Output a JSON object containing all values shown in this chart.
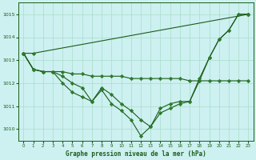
{
  "title": "Graphe pression niveau de la mer (hPa)",
  "background_color": "#cdf0f0",
  "grid_color": "#aaddcc",
  "line_color": "#1a5c1a",
  "marker_color": "#2d7a2d",
  "xlim": [
    -0.5,
    23.5
  ],
  "ylim": [
    1009.5,
    1015.5
  ],
  "yticks": [
    1010,
    1011,
    1012,
    1013,
    1014,
    1015
  ],
  "xticks": [
    0,
    1,
    2,
    3,
    4,
    5,
    6,
    7,
    8,
    9,
    10,
    11,
    12,
    13,
    14,
    15,
    16,
    17,
    18,
    19,
    20,
    21,
    22,
    23
  ],
  "series": {
    "line_top": [
      1013.3,
      1013.3,
      null,
      null,
      null,
      null,
      null,
      null,
      null,
      null,
      null,
      null,
      null,
      null,
      null,
      null,
      null,
      null,
      null,
      null,
      null,
      null,
      null,
      1015.0
    ],
    "line_deep": [
      1013.3,
      1012.6,
      1012.5,
      1012.5,
      1012.0,
      1011.6,
      1011.4,
      1011.2,
      1011.7,
      1011.1,
      1010.8,
      1010.4,
      1009.7,
      1010.1,
      1010.7,
      1010.9,
      1011.1,
      1011.2,
      1012.1,
      1013.1,
      1013.9,
      1014.3,
      1015.0,
      1015.0
    ],
    "line_flat": [
      1013.3,
      1012.6,
      1012.5,
      1012.5,
      1012.5,
      1012.4,
      1012.4,
      1012.3,
      1012.3,
      1012.3,
      1012.3,
      1012.2,
      1012.2,
      1012.2,
      1012.2,
      1012.2,
      1012.2,
      1012.1,
      1012.1,
      1012.1,
      1012.1,
      1012.1,
      1012.1,
      1012.1
    ],
    "line_medium": [
      1013.3,
      1012.6,
      1012.5,
      1012.5,
      1012.3,
      1012.0,
      1011.8,
      1011.2,
      1011.8,
      1011.5,
      1011.1,
      1010.8,
      1010.4,
      1010.1,
      1010.9,
      1011.1,
      1011.2,
      1011.2,
      1012.2,
      1013.1,
      1013.9,
      1014.3,
      1015.0,
      1015.0
    ]
  }
}
